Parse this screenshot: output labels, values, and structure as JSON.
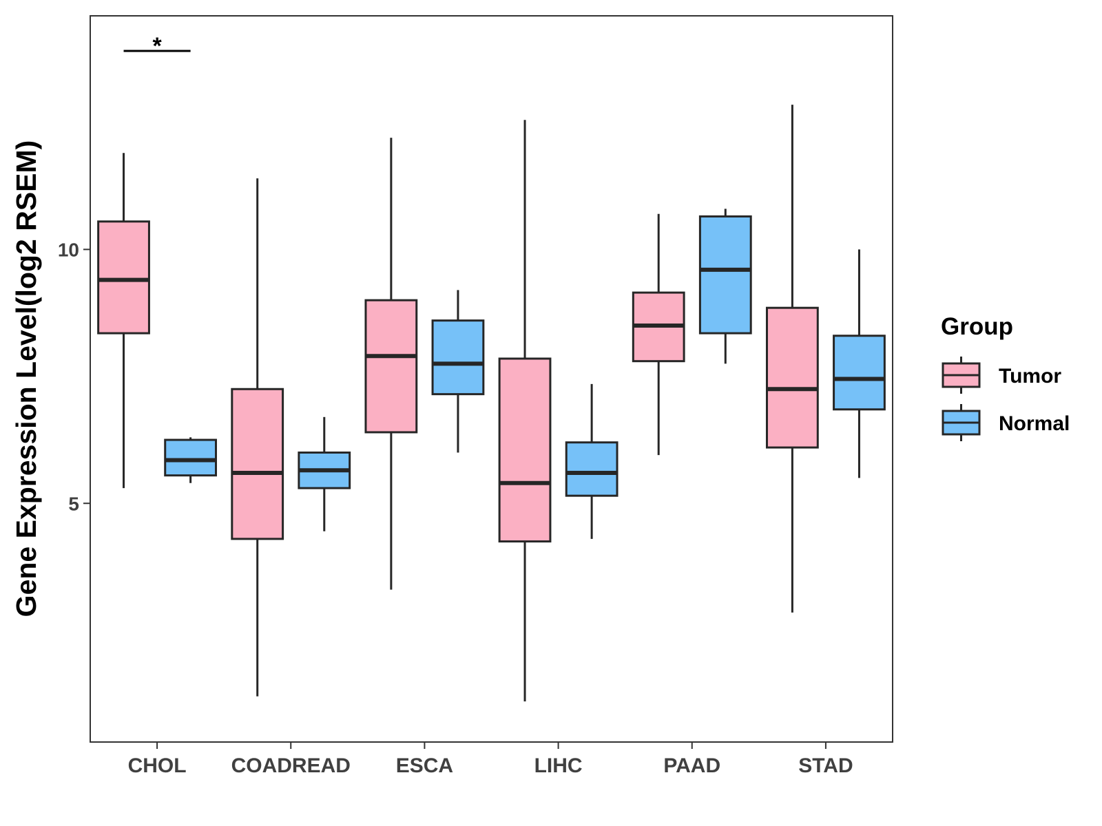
{
  "chart_data": {
    "type": "boxplot",
    "ylabel": "Gene Expression Level(log2 RSEM)",
    "xlabel": "",
    "ylim": [
      0.3,
      14.6
    ],
    "yticks": [
      5,
      10
    ],
    "categories": [
      "CHOL",
      "COADREAD",
      "ESCA",
      "LIHC",
      "PAAD",
      "STAD"
    ],
    "series": [
      {
        "name": "Tumor",
        "color": "#fbb0c3",
        "boxes": [
          {
            "min": 5.3,
            "q1": 8.35,
            "median": 9.4,
            "q3": 10.55,
            "max": 11.9
          },
          {
            "min": 1.2,
            "q1": 4.3,
            "median": 5.6,
            "q3": 7.25,
            "max": 11.4
          },
          {
            "min": 3.3,
            "q1": 6.4,
            "median": 7.9,
            "q3": 9.0,
            "max": 12.2
          },
          {
            "min": 1.1,
            "q1": 4.25,
            "median": 5.4,
            "q3": 7.85,
            "max": 12.55
          },
          {
            "min": 5.95,
            "q1": 7.8,
            "median": 8.5,
            "q3": 9.15,
            "max": 10.7
          },
          {
            "min": 2.85,
            "q1": 6.1,
            "median": 7.25,
            "q3": 8.85,
            "max": 12.85
          }
        ]
      },
      {
        "name": "Normal",
        "color": "#76c1f8",
        "boxes": [
          {
            "min": 5.4,
            "q1": 5.55,
            "median": 5.85,
            "q3": 6.25,
            "max": 6.3
          },
          {
            "min": 4.45,
            "q1": 5.3,
            "median": 5.65,
            "q3": 6.0,
            "max": 6.7
          },
          {
            "min": 6.0,
            "q1": 7.15,
            "median": 7.75,
            "q3": 8.6,
            "max": 9.2
          },
          {
            "min": 4.3,
            "q1": 5.15,
            "median": 5.6,
            "q3": 6.2,
            "max": 7.35
          },
          {
            "min": 7.75,
            "q1": 8.35,
            "median": 9.6,
            "q3": 10.65,
            "max": 10.8
          },
          {
            "min": 5.5,
            "q1": 6.85,
            "median": 7.45,
            "q3": 8.3,
            "max": 10.0
          }
        ]
      }
    ],
    "annotations": [
      {
        "category": "CHOL",
        "text": "*"
      }
    ],
    "legend": {
      "title": "Group",
      "position": "right"
    }
  }
}
